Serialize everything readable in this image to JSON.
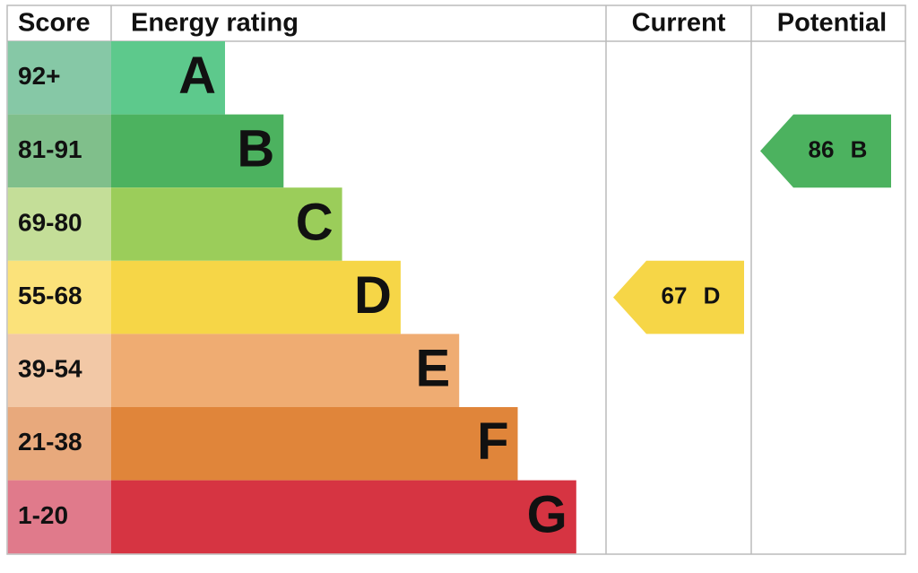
{
  "header": {
    "score": "Score",
    "rating": "Energy rating",
    "current": "Current",
    "potential": "Potential"
  },
  "bands": [
    {
      "score": "92+",
      "letter": "A",
      "color": "#5dc98c",
      "score_color": "#86c8a6"
    },
    {
      "score": "81-91",
      "letter": "B",
      "color": "#4cb25f",
      "score_color": "#80bf8b"
    },
    {
      "score": "69-80",
      "letter": "C",
      "color": "#9bcd5a",
      "score_color": "#c4de98"
    },
    {
      "score": "55-68",
      "letter": "D",
      "color": "#f6d647",
      "score_color": "#fbe27a"
    },
    {
      "score": "39-54",
      "letter": "E",
      "color": "#efac72",
      "score_color": "#f2c8a6"
    },
    {
      "score": "21-38",
      "letter": "F",
      "color": "#e0853a",
      "score_color": "#e8a97c"
    },
    {
      "score": "1-20",
      "letter": "G",
      "color": "#d63442",
      "score_color": "#e07a8b"
    }
  ],
  "current": {
    "value": 67,
    "letter": "D"
  },
  "potential": {
    "value": 86,
    "letter": "B"
  }
}
